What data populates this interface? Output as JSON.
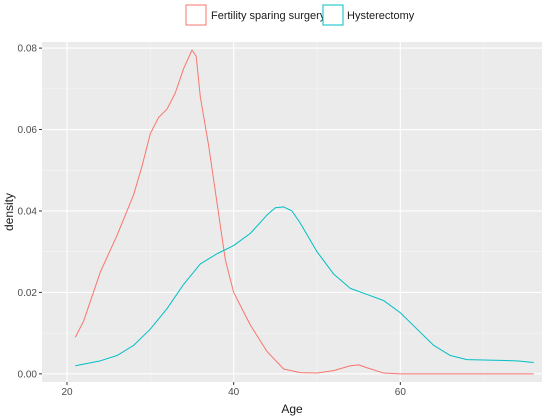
{
  "chart_data": {
    "type": "line",
    "title": "",
    "xlabel": "Age",
    "ylabel": "density",
    "xlim": [
      17,
      77
    ],
    "ylim": [
      -0.002,
      0.0815
    ],
    "x_ticks": [
      20,
      40,
      60
    ],
    "y_ticks": [
      0.0,
      0.02,
      0.04,
      0.06,
      0.08
    ],
    "y_tick_labels": [
      "0.00",
      "0.02",
      "0.04",
      "0.06",
      "0.08"
    ],
    "grid": true,
    "legend_position": "top",
    "series": [
      {
        "name": "Fertility sparing surgery",
        "color": "#F8766D",
        "x": [
          21,
          22,
          24,
          26,
          28,
          29,
          30,
          31,
          32,
          33,
          34,
          35,
          35.5,
          36,
          37,
          38,
          39,
          40,
          41,
          42,
          44,
          46,
          48,
          50,
          52,
          54,
          55,
          56,
          58,
          60,
          65,
          70,
          76
        ],
        "y": [
          0.009,
          0.013,
          0.025,
          0.034,
          0.044,
          0.051,
          0.059,
          0.063,
          0.065,
          0.069,
          0.075,
          0.0795,
          0.078,
          0.068,
          0.056,
          0.042,
          0.028,
          0.02,
          0.016,
          0.012,
          0.0055,
          0.0012,
          0.0003,
          0.0002,
          0.0008,
          0.002,
          0.0022,
          0.0015,
          0.0002,
          0.0,
          0.0,
          0.0,
          0.0
        ]
      },
      {
        "name": "Hysterectomy",
        "color": "#00BFC4",
        "x": [
          21,
          24,
          26,
          28,
          30,
          32,
          34,
          36,
          38,
          40,
          42,
          44,
          45,
          46,
          47,
          48,
          50,
          52,
          54,
          56,
          58,
          60,
          62,
          64,
          66,
          68,
          70,
          72,
          74,
          76
        ],
        "y": [
          0.002,
          0.0032,
          0.0045,
          0.007,
          0.011,
          0.016,
          0.022,
          0.027,
          0.0295,
          0.0315,
          0.0345,
          0.039,
          0.0408,
          0.041,
          0.04,
          0.037,
          0.03,
          0.0245,
          0.021,
          0.0195,
          0.018,
          0.015,
          0.011,
          0.007,
          0.0045,
          0.0035,
          0.0034,
          0.0033,
          0.0032,
          0.0028
        ]
      }
    ]
  }
}
